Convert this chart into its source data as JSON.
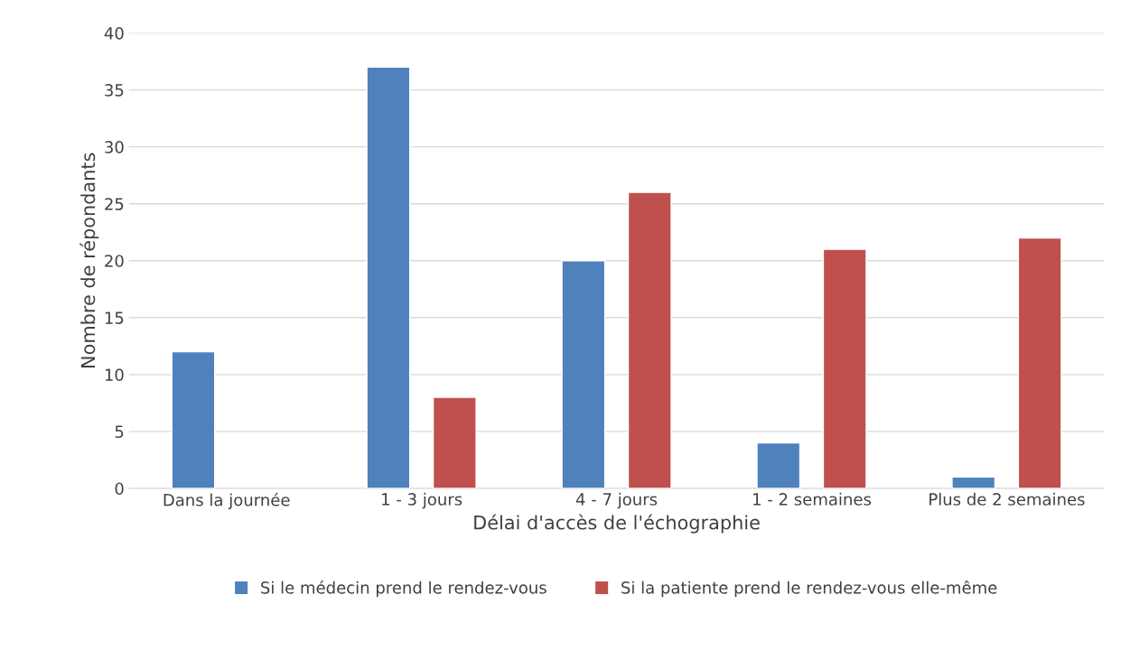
{
  "chart_data": {
    "type": "bar",
    "xlabel": "Délai d'accès de l'échographie",
    "ylabel": "Nombre de répondants",
    "categories": [
      "Dans la journée",
      "1 - 3 jours",
      "4 - 7 jours",
      "1 - 2 semaines",
      "Plus de 2 semaines"
    ],
    "series": [
      {
        "name": "Si le médecin prend le rendez-vous",
        "color": "#4f81bd",
        "values": [
          12,
          37,
          20,
          4,
          1
        ]
      },
      {
        "name": "Si la patiente prend le rendez-vous elle-même",
        "color": "#c0504d",
        "values": [
          null,
          8,
          26,
          21,
          22
        ]
      }
    ],
    "ylim": [
      0,
      40
    ],
    "yticks": [
      0,
      5,
      10,
      15,
      20,
      25,
      30,
      35,
      40
    ],
    "grid": "y",
    "legend": "bottom"
  }
}
